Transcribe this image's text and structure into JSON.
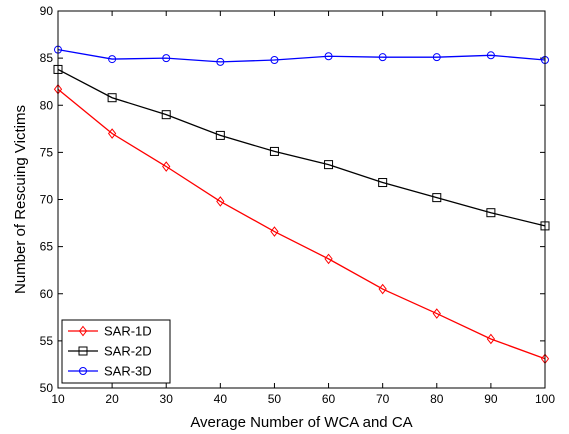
{
  "chart_data": {
    "type": "line",
    "title": "",
    "xlabel": "Average Number of WCA and CA",
    "ylabel": "Number of Rescuing Victims",
    "xlim": [
      10,
      100
    ],
    "ylim": [
      50,
      90
    ],
    "xticks": [
      10,
      20,
      30,
      40,
      50,
      60,
      70,
      80,
      90,
      100
    ],
    "yticks": [
      50,
      55,
      60,
      65,
      70,
      75,
      80,
      85,
      90
    ],
    "grid": false,
    "legend_position": "bottom-left",
    "x": [
      10,
      20,
      30,
      40,
      50,
      60,
      70,
      80,
      90,
      100
    ],
    "series": [
      {
        "name": "SAR-1D",
        "color": "#ff0000",
        "marker": "diamond",
        "values": [
          81.7,
          77.0,
          73.5,
          69.8,
          66.6,
          63.7,
          60.5,
          57.9,
          55.2,
          53.1
        ]
      },
      {
        "name": "SAR-2D",
        "color": "#000000",
        "marker": "square",
        "values": [
          83.8,
          80.8,
          79.0,
          76.8,
          75.1,
          73.7,
          71.8,
          70.2,
          68.6,
          67.2
        ]
      },
      {
        "name": "SAR-3D",
        "color": "#0000ff",
        "marker": "circle",
        "values": [
          85.9,
          84.9,
          85.0,
          84.6,
          84.8,
          85.2,
          85.1,
          85.1,
          85.3,
          84.8
        ]
      }
    ]
  }
}
